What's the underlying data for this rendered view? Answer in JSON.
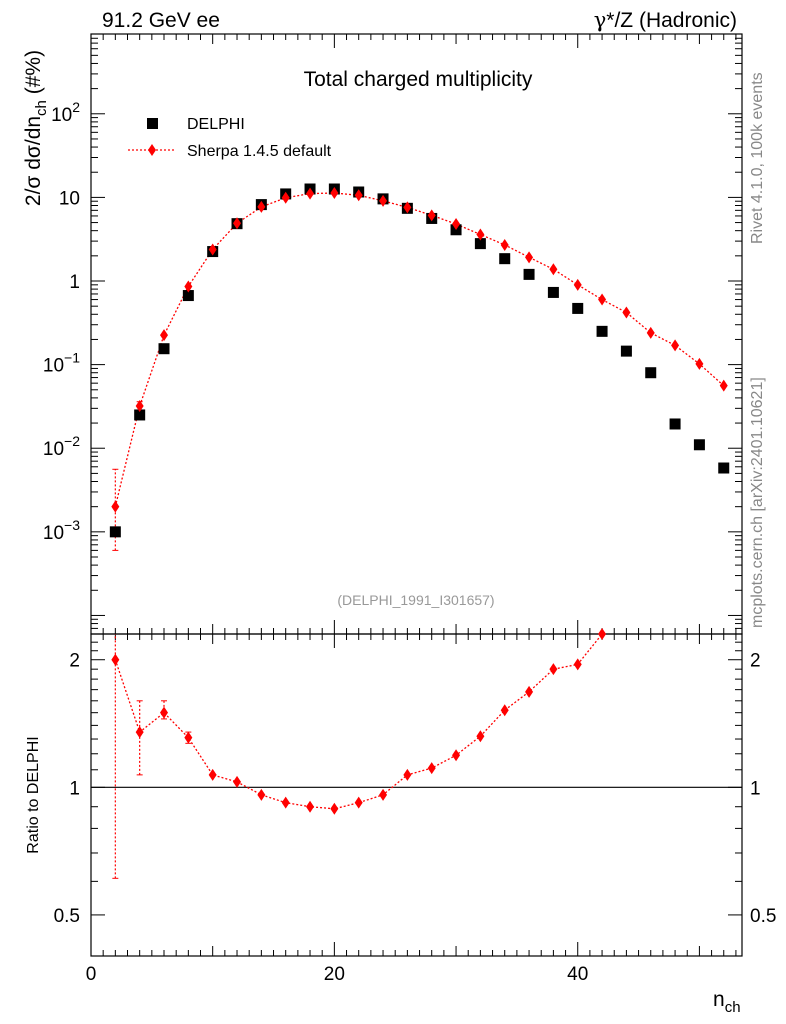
{
  "header": {
    "left": "91.2 GeV ee",
    "right_pre": "γ",
    "right_post": "*/Z (Hadronic)"
  },
  "side_text": {
    "rivet": "Rivet 4.1.0,  100k events",
    "mcplots": "mcplots.cern.ch [arXiv:2401.10621]"
  },
  "analysis_id": "(DELPHI_1991_I301657)",
  "chart_data": [
    {
      "type": "scatter",
      "yscale": "log",
      "title": "Total charged multiplicity",
      "ylabel": "2/σ  dσ/dn_ch (#%)",
      "ylabel_parts": {
        "main": "2/σ  dσ/dn",
        "sub": "ch",
        "tail": " (#%)"
      },
      "xlim": [
        0,
        53.5
      ],
      "ylim": [
        6e-05,
        900
      ],
      "yticks": [
        {
          "value": 0.001,
          "base": "10",
          "exp": "−3"
        },
        {
          "value": 0.01,
          "base": "10",
          "exp": "−2"
        },
        {
          "value": 0.1,
          "base": "10",
          "exp": "−1"
        },
        {
          "value": 1,
          "base": "1",
          "exp": ""
        },
        {
          "value": 10,
          "base": "10",
          "exp": ""
        },
        {
          "value": 100,
          "base": "10",
          "exp": "2"
        }
      ],
      "legend_position": "top-left",
      "series": [
        {
          "name": "DELPHI",
          "color": "#000000",
          "marker": "square",
          "x": [
            2,
            4,
            6,
            8,
            10,
            12,
            14,
            16,
            18,
            20,
            22,
            24,
            26,
            28,
            30,
            32,
            34,
            36,
            38,
            40,
            42,
            44,
            46,
            48,
            50,
            52
          ],
          "y": [
            0.001,
            0.025,
            0.155,
            0.67,
            2.25,
            4.85,
            8.2,
            11.0,
            12.6,
            12.6,
            11.6,
            9.6,
            7.4,
            5.6,
            4.1,
            2.8,
            1.85,
            1.2,
            0.73,
            0.47,
            0.25,
            0.145,
            0.08,
            0.0195,
            0.011,
            0.0058
          ]
        },
        {
          "name": "Sherpa 1.4.5 default",
          "color": "#ff0000",
          "marker": "diamond",
          "x": [
            2,
            4,
            6,
            8,
            10,
            12,
            14,
            16,
            18,
            20,
            22,
            24,
            26,
            28,
            30,
            32,
            34,
            36,
            38,
            40,
            42,
            44,
            46,
            48,
            50,
            52
          ],
          "y": [
            0.002,
            0.032,
            0.225,
            0.86,
            2.38,
            4.9,
            7.7,
            9.9,
            11.1,
            11.3,
            10.6,
            9.1,
            7.6,
            6.1,
            4.8,
            3.6,
            2.7,
            1.92,
            1.38,
            0.9,
            0.6,
            0.42,
            0.24,
            0.17,
            0.102,
            0.056
          ],
          "yerr_low": [
            0.0014,
            0.004
          ],
          "yerr_high": [
            0.0036,
            0.004
          ]
        }
      ]
    },
    {
      "type": "line",
      "yscale": "log",
      "ylabel": "Ratio to DELPHI",
      "xlabel": "n_ch",
      "xlabel_parts": {
        "main": "n",
        "sub": "ch"
      },
      "xlim": [
        0,
        53.5
      ],
      "ylim": [
        0.4,
        2.3
      ],
      "xticks": [
        0,
        20,
        40
      ],
      "yticks": [
        0.5,
        1,
        2
      ],
      "reference_line": 1,
      "series": [
        {
          "name": "Sherpa 1.4.5 default",
          "color": "#ff0000",
          "marker": "diamond",
          "x": [
            2,
            4,
            6,
            8,
            10,
            12,
            14,
            16,
            18,
            20,
            22,
            24,
            26,
            28,
            30,
            32,
            34,
            36,
            38,
            40,
            42
          ],
          "y": [
            2.0,
            1.35,
            1.5,
            1.31,
            1.07,
            1.03,
            0.96,
            0.92,
            0.9,
            0.89,
            0.92,
            0.96,
            1.07,
            1.11,
            1.19,
            1.32,
            1.52,
            1.68,
            1.9,
            1.95,
            2.3
          ],
          "yerr_low": [
            1.39,
            0.28,
            0.05,
            0.04
          ],
          "yerr_high": [
            1.2,
            0.25,
            0.1,
            0.04
          ]
        }
      ]
    }
  ]
}
